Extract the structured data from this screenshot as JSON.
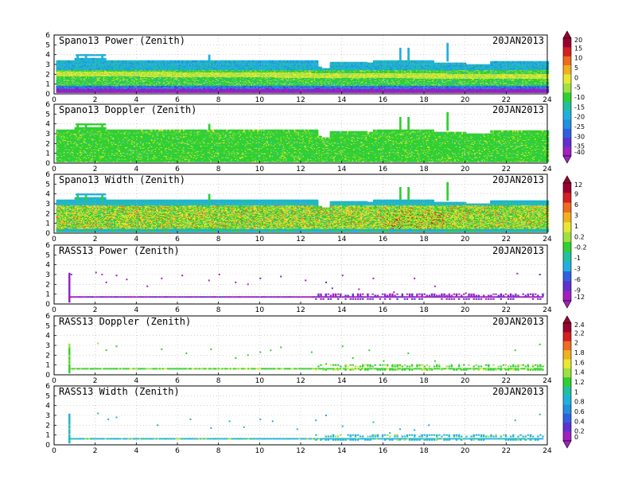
{
  "chart_data": [
    {
      "type": "heatmap",
      "title": "Spano13 Power (Zenith)",
      "date": "20JAN2013",
      "xlim": [
        0,
        24
      ],
      "ylim": [
        0,
        6
      ],
      "xticks": [
        "0",
        "2",
        "4",
        "6",
        "8",
        "10",
        "12",
        "14",
        "16",
        "18",
        "20",
        "22",
        "24"
      ],
      "yticks": [
        "0",
        "1",
        "2",
        "3",
        "4",
        "5",
        "6"
      ],
      "grid": true,
      "variable": "power",
      "colorbar_group": 0,
      "top_height_km": [
        [
          0,
          3.3
        ],
        [
          1.0,
          3.5
        ],
        [
          2.5,
          3.3
        ],
        [
          7.5,
          3.3
        ],
        [
          12.8,
          2.6
        ],
        [
          13.0,
          2.5
        ],
        [
          13.4,
          3.1
        ],
        [
          14.8,
          3.1
        ],
        [
          15.2,
          3.0
        ],
        [
          15.5,
          3.3
        ],
        [
          17.8,
          3.3
        ],
        [
          18.4,
          3.0
        ],
        [
          20.0,
          2.9
        ],
        [
          21.2,
          3.2
        ],
        [
          24,
          3.2
        ]
      ],
      "spikes": [
        [
          1.1,
          3.9
        ],
        [
          1.5,
          3.9
        ],
        [
          2.3,
          3.9
        ],
        [
          7.5,
          3.9
        ],
        [
          16.8,
          4.5
        ],
        [
          17.2,
          4.5
        ],
        [
          19.1,
          5.0
        ]
      ]
    },
    {
      "type": "heatmap",
      "title": "Spano13 Doppler (Zenith)",
      "date": "20JAN2013",
      "xlim": [
        0,
        24
      ],
      "ylim": [
        0,
        6
      ],
      "xticks": [
        "0",
        "2",
        "4",
        "6",
        "8",
        "10",
        "12",
        "14",
        "16",
        "18",
        "20",
        "22",
        "24"
      ],
      "yticks": [
        "0",
        "1",
        "2",
        "3",
        "4",
        "5",
        "6"
      ],
      "grid": true,
      "variable": "doppler",
      "colorbar_group": 0,
      "top_height_km": [
        [
          0,
          3.3
        ],
        [
          1.0,
          3.5
        ],
        [
          2.5,
          3.3
        ],
        [
          7.5,
          3.3
        ],
        [
          12.8,
          2.6
        ],
        [
          13.0,
          2.5
        ],
        [
          13.4,
          3.1
        ],
        [
          14.8,
          3.1
        ],
        [
          15.2,
          3.0
        ],
        [
          15.5,
          3.3
        ],
        [
          17.8,
          3.3
        ],
        [
          18.4,
          3.0
        ],
        [
          20.0,
          2.9
        ],
        [
          21.2,
          3.2
        ],
        [
          24,
          3.2
        ]
      ],
      "spikes": [
        [
          1.1,
          3.9
        ],
        [
          1.5,
          3.9
        ],
        [
          2.3,
          3.9
        ],
        [
          7.5,
          3.9
        ],
        [
          16.8,
          4.5
        ],
        [
          17.2,
          4.5
        ],
        [
          19.1,
          5.0
        ]
      ]
    },
    {
      "type": "heatmap",
      "title": "Spano13 Width (Zenith)",
      "date": "20JAN2013",
      "xlim": [
        0,
        24
      ],
      "ylim": [
        0,
        6
      ],
      "xticks": [
        "0",
        "2",
        "4",
        "6",
        "8",
        "10",
        "12",
        "14",
        "16",
        "18",
        "20",
        "22",
        "24"
      ],
      "yticks": [
        "0",
        "1",
        "2",
        "3",
        "4",
        "5",
        "6"
      ],
      "grid": true,
      "variable": "width",
      "colorbar_group": 1,
      "top_height_km": [
        [
          0,
          3.3
        ],
        [
          1.0,
          3.5
        ],
        [
          2.5,
          3.3
        ],
        [
          7.5,
          3.3
        ],
        [
          12.8,
          2.6
        ],
        [
          13.0,
          2.5
        ],
        [
          13.4,
          3.1
        ],
        [
          14.8,
          3.1
        ],
        [
          15.2,
          3.0
        ],
        [
          15.5,
          3.3
        ],
        [
          17.8,
          3.3
        ],
        [
          18.4,
          3.0
        ],
        [
          20.0,
          2.9
        ],
        [
          21.2,
          3.2
        ],
        [
          24,
          3.2
        ]
      ],
      "spikes": [
        [
          1.1,
          3.9
        ],
        [
          1.5,
          3.9
        ],
        [
          2.3,
          3.9
        ],
        [
          7.5,
          3.9
        ],
        [
          16.8,
          4.5
        ],
        [
          17.2,
          4.5
        ],
        [
          19.1,
          5.0
        ]
      ]
    },
    {
      "type": "heatmap",
      "title": "RASS13 Power (Zenith)",
      "date": "20JAN2013",
      "xlim": [
        0,
        24
      ],
      "ylim": [
        0,
        6
      ],
      "xticks": [
        "0",
        "2",
        "4",
        "6",
        "8",
        "10",
        "12",
        "14",
        "16",
        "18",
        "20",
        "22",
        "24"
      ],
      "yticks": [
        "0",
        "1",
        "2",
        "3",
        "4",
        "5",
        "6"
      ],
      "grid": true,
      "variable": "rass_power",
      "colorbar_group": 1,
      "baseline_km": 0.7,
      "column_at_hour": 0.7,
      "band_range_hours": [
        12.7,
        23.8
      ],
      "scatter_points": [
        [
          0.8,
          3.0
        ],
        [
          2.0,
          3.2
        ],
        [
          2.3,
          3.0
        ],
        [
          2.5,
          2.2
        ],
        [
          3.0,
          2.9
        ],
        [
          3.5,
          2.5
        ],
        [
          4.5,
          1.8
        ],
        [
          5.2,
          2.6
        ],
        [
          6.2,
          2.9
        ],
        [
          7.5,
          2.4
        ],
        [
          8.0,
          3.0
        ],
        [
          8.8,
          2.2
        ],
        [
          9.4,
          2.0
        ],
        [
          10.0,
          2.6
        ],
        [
          11.0,
          2.8
        ],
        [
          12.2,
          2.4
        ],
        [
          13.2,
          2.2
        ],
        [
          13.5,
          1.6
        ],
        [
          14.0,
          2.9
        ],
        [
          14.8,
          1.5
        ],
        [
          15.5,
          2.6
        ],
        [
          16.5,
          1.2
        ],
        [
          17.5,
          2.6
        ],
        [
          18.5,
          1.8
        ],
        [
          20.0,
          1.1
        ],
        [
          22.5,
          3.1
        ],
        [
          23.6,
          3.0
        ]
      ]
    },
    {
      "type": "heatmap",
      "title": "RASS13 Doppler (Zenith)",
      "date": "20JAN2013",
      "xlim": [
        0,
        24
      ],
      "ylim": [
        0,
        6
      ],
      "xticks": [
        "0",
        "2",
        "4",
        "6",
        "8",
        "10",
        "12",
        "14",
        "16",
        "18",
        "20",
        "22",
        "24"
      ],
      "yticks": [
        "0",
        "1",
        "2",
        "3",
        "4",
        "5",
        "6"
      ],
      "grid": true,
      "variable": "rass_doppler",
      "colorbar_group": 2,
      "baseline_km": 0.6,
      "column_at_hour": 0.7,
      "band_range_hours": [
        12.7,
        23.8
      ],
      "scatter_points": [
        [
          2.1,
          3.2
        ],
        [
          2.5,
          2.5
        ],
        [
          3.0,
          2.9
        ],
        [
          5.2,
          2.6
        ],
        [
          6.4,
          2.2
        ],
        [
          7.6,
          2.6
        ],
        [
          8.8,
          1.7
        ],
        [
          9.4,
          2.0
        ],
        [
          10.0,
          2.3
        ],
        [
          10.5,
          2.5
        ],
        [
          11.0,
          2.8
        ],
        [
          12.5,
          2.3
        ],
        [
          13.2,
          1.1
        ],
        [
          14.0,
          2.9
        ],
        [
          14.5,
          1.7
        ],
        [
          15.3,
          2.5
        ],
        [
          16.0,
          1.4
        ],
        [
          17.2,
          2.2
        ],
        [
          18.5,
          1.4
        ],
        [
          22.4,
          2.5
        ],
        [
          23.6,
          3.1
        ]
      ]
    },
    {
      "type": "heatmap",
      "title": "RASS13 Width (Zenith)",
      "date": "20JAN2013",
      "xlim": [
        0,
        24
      ],
      "ylim": [
        0,
        6
      ],
      "xticks": [
        "0",
        "2",
        "4",
        "6",
        "8",
        "10",
        "12",
        "14",
        "16",
        "18",
        "20",
        "22",
        "24"
      ],
      "yticks": [
        "0",
        "1",
        "2",
        "3",
        "4",
        "5",
        "6"
      ],
      "grid": true,
      "variable": "rass_width",
      "colorbar_group": 2,
      "baseline_km": 0.6,
      "column_at_hour": 0.7,
      "band_range_hours": [
        12.7,
        23.8
      ],
      "scatter_points": [
        [
          2.1,
          3.2
        ],
        [
          2.6,
          2.6
        ],
        [
          3.0,
          2.8
        ],
        [
          5.0,
          2.0
        ],
        [
          6.6,
          2.6
        ],
        [
          7.6,
          1.7
        ],
        [
          8.5,
          2.4
        ],
        [
          9.2,
          1.8
        ],
        [
          10.0,
          2.6
        ],
        [
          10.6,
          2.4
        ],
        [
          11.8,
          1.6
        ],
        [
          12.7,
          2.5
        ],
        [
          13.2,
          3.0
        ],
        [
          14.0,
          1.9
        ],
        [
          15.5,
          2.3
        ],
        [
          16.3,
          1.2
        ],
        [
          16.8,
          1.6
        ],
        [
          17.5,
          1.5
        ],
        [
          18.2,
          2.0
        ],
        [
          22.4,
          2.5
        ],
        [
          23.6,
          3.1
        ]
      ]
    }
  ],
  "colorbars": [
    {
      "labels": [
        "20",
        "15",
        "10",
        "5",
        "0",
        "-5",
        "-10",
        "-15",
        "-20",
        "-25",
        "-30",
        "-35",
        "-40"
      ],
      "colors": [
        "#9b0030",
        "#d42020",
        "#f06a20",
        "#f0b020",
        "#e8e830",
        "#a0e040",
        "#30d030",
        "#20c0a0",
        "#20b0e0",
        "#2090e0",
        "#3060e0",
        "#6030d0",
        "#a020c0"
      ]
    },
    {
      "labels": [
        "12",
        "9",
        "6",
        "3",
        "1",
        "0.2",
        "-0.2",
        "-1",
        "-3",
        "-6",
        "-9",
        "-12"
      ],
      "colors": [
        "#9b0030",
        "#d42020",
        "#f06a20",
        "#f0b020",
        "#e8e830",
        "#a0e040",
        "#30d030",
        "#20c0a0",
        "#20b0e0",
        "#3060e0",
        "#6030d0",
        "#a020c0"
      ]
    },
    {
      "labels": [
        "2.4",
        "2.2",
        "2",
        "1.8",
        "1.6",
        "1.4",
        "1.2",
        "1",
        "0.8",
        "0.6",
        "0.4",
        "0.2",
        "0"
      ],
      "colors": [
        "#9b0030",
        "#d42020",
        "#f06a20",
        "#f0b020",
        "#e8e830",
        "#a0e040",
        "#30d030",
        "#20c0a0",
        "#20b0e0",
        "#2090e0",
        "#3060e0",
        "#6030d0",
        "#a020c0"
      ]
    }
  ]
}
